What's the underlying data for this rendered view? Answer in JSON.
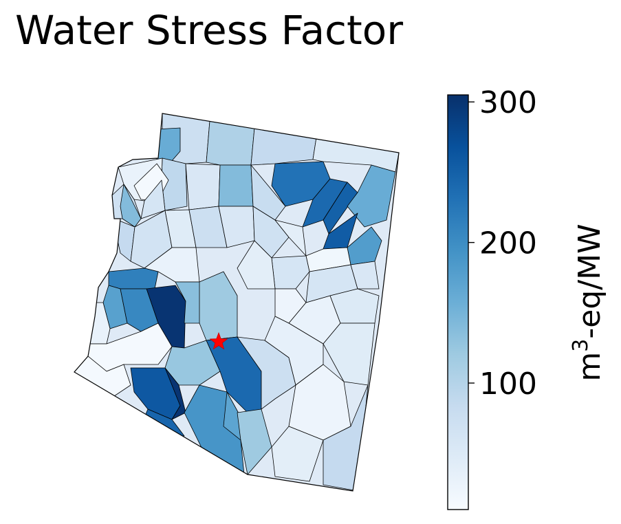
{
  "title": "Water Stress Factor",
  "colorbar": {
    "label_base": "m",
    "label_sup": "3",
    "label_rest": "-eq/MW",
    "min": 10,
    "max": 305,
    "ticks": [
      {
        "value": 100,
        "label": "100"
      },
      {
        "value": 200,
        "label": "200"
      },
      {
        "value": 300,
        "label": "300"
      }
    ],
    "colormap": "Blues",
    "colors": [
      "#f7fbff",
      "#deebf7",
      "#c6dbef",
      "#9ecae1",
      "#6baed6",
      "#4292c6",
      "#2171b5",
      "#08519c",
      "#08306b"
    ]
  },
  "marker": {
    "name": "location-star",
    "color": "#ff0000",
    "shape": "star"
  },
  "map": {
    "region_name": "Arizona",
    "watersheds": [
      {
        "id": "w01",
        "value": 75
      },
      {
        "id": "w02",
        "value": 160
      },
      {
        "id": "w03",
        "value": 105
      },
      {
        "id": "w04",
        "value": 85
      },
      {
        "id": "w05",
        "value": 50
      },
      {
        "id": "w06",
        "value": 90
      },
      {
        "id": "w07",
        "value": 30
      },
      {
        "id": "w08",
        "value": 15
      },
      {
        "id": "w09",
        "value": 70
      },
      {
        "id": "w10",
        "value": 140
      },
      {
        "id": "w11",
        "value": 230
      },
      {
        "id": "w12",
        "value": 240
      },
      {
        "id": "w13",
        "value": 250
      },
      {
        "id": "w14",
        "value": 160
      },
      {
        "id": "w15",
        "value": 255
      },
      {
        "id": "w16",
        "value": 180
      },
      {
        "id": "w17",
        "value": 20
      },
      {
        "id": "w18",
        "value": 55
      },
      {
        "id": "w19",
        "value": 140
      },
      {
        "id": "w20",
        "value": 80
      },
      {
        "id": "w21",
        "value": 60
      },
      {
        "id": "w22",
        "value": 85
      },
      {
        "id": "w23",
        "value": 65
      },
      {
        "id": "w24",
        "value": 45
      },
      {
        "id": "w25",
        "value": 75
      },
      {
        "id": "w26",
        "value": 55
      },
      {
        "id": "w27",
        "value": 70
      },
      {
        "id": "w28",
        "value": 40
      },
      {
        "id": "w29",
        "value": 30
      },
      {
        "id": "w30",
        "value": 215
      },
      {
        "id": "w31",
        "value": 175
      },
      {
        "id": "w32",
        "value": 300
      },
      {
        "id": "w33",
        "value": 205
      },
      {
        "id": "w34",
        "value": 135
      },
      {
        "id": "w35",
        "value": 120
      },
      {
        "id": "w36",
        "value": 30
      },
      {
        "id": "w37",
        "value": 15
      },
      {
        "id": "w38",
        "value": 15
      },
      {
        "id": "w39",
        "value": 125
      },
      {
        "id": "w40",
        "value": 225
      },
      {
        "id": "w41",
        "value": 260
      },
      {
        "id": "w42",
        "value": 300
      },
      {
        "id": "w43",
        "value": 245
      },
      {
        "id": "w44",
        "value": 190
      },
      {
        "id": "w45",
        "value": 170
      },
      {
        "id": "w46",
        "value": 240
      },
      {
        "id": "w47",
        "value": 120
      },
      {
        "id": "w48",
        "value": 75
      },
      {
        "id": "w49",
        "value": 60
      },
      {
        "id": "w50",
        "value": 40
      },
      {
        "id": "w51",
        "value": 25
      },
      {
        "id": "w52",
        "value": 30
      },
      {
        "id": "w53",
        "value": 60
      },
      {
        "id": "w54",
        "value": 55
      },
      {
        "id": "w55",
        "value": 50
      },
      {
        "id": "w56",
        "value": 35
      },
      {
        "id": "w57",
        "value": 45
      },
      {
        "id": "w58",
        "value": 25
      },
      {
        "id": "w59",
        "value": 40
      },
      {
        "id": "w60",
        "value": 85
      }
    ]
  }
}
